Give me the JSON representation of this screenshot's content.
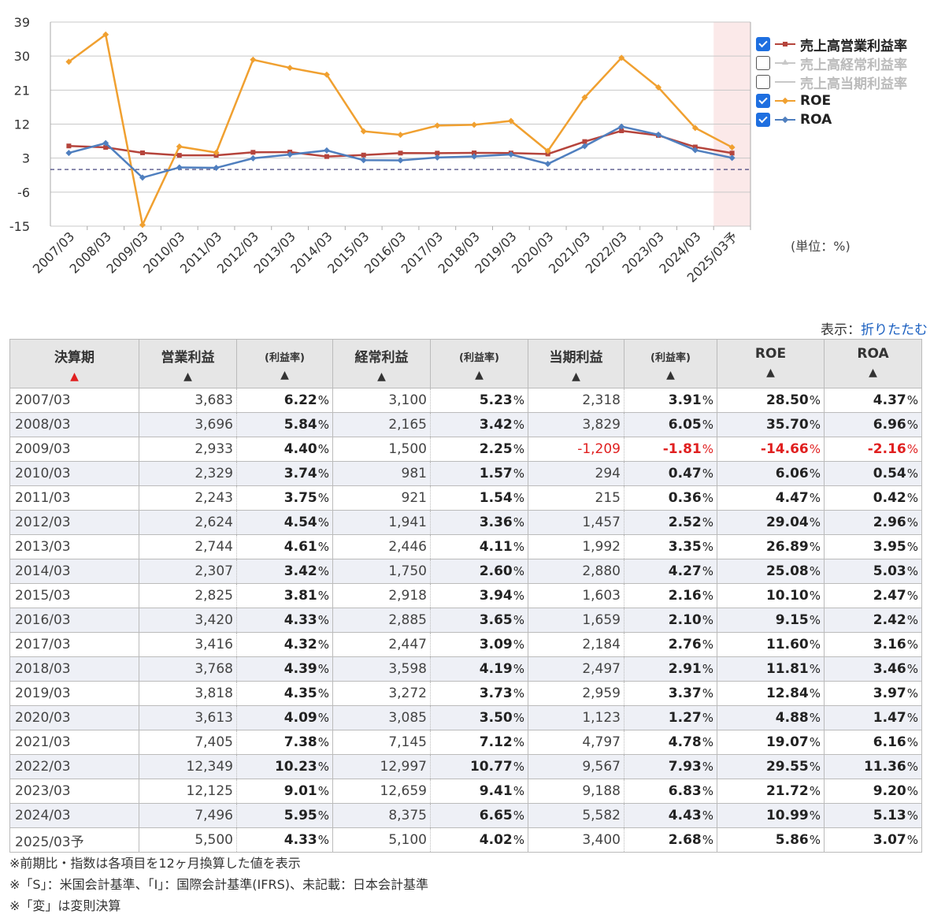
{
  "chart_data": {
    "type": "line",
    "categories": [
      "2007/03",
      "2008/03",
      "2009/03",
      "2010/03",
      "2011/03",
      "2012/03",
      "2013/03",
      "2014/03",
      "2015/03",
      "2016/03",
      "2017/03",
      "2018/03",
      "2019/03",
      "2020/03",
      "2021/03",
      "2022/03",
      "2023/03",
      "2024/03",
      "2025/03予"
    ],
    "yticks": [
      39,
      30,
      21,
      12,
      3,
      -6,
      -15
    ],
    "ylim": [
      -15,
      39
    ],
    "reference_line": 0,
    "forecast_shaded_category": "2025/03予",
    "series": [
      {
        "name": "売上高営業利益率",
        "color": "#b5443c",
        "marker": "square",
        "checked": true,
        "visible": true,
        "values": [
          6.22,
          5.84,
          4.4,
          3.74,
          3.75,
          4.54,
          4.61,
          3.42,
          3.81,
          4.33,
          4.32,
          4.39,
          4.35,
          4.09,
          7.38,
          10.23,
          9.01,
          5.95,
          4.33
        ]
      },
      {
        "name": "売上高経常利益率",
        "color": "#c8c8c8",
        "marker": "triangle",
        "checked": false,
        "visible": false,
        "values": [
          5.23,
          3.42,
          2.25,
          1.57,
          1.54,
          3.36,
          4.11,
          2.6,
          3.94,
          3.65,
          3.09,
          4.19,
          3.73,
          3.5,
          7.12,
          10.77,
          9.41,
          6.65,
          4.02
        ]
      },
      {
        "name": "売上高当期利益率",
        "color": "#c8c8c8",
        "marker": "none",
        "checked": false,
        "visible": false,
        "values": [
          3.91,
          6.05,
          -1.81,
          0.47,
          0.36,
          2.52,
          3.35,
          4.27,
          2.16,
          2.1,
          2.76,
          2.91,
          3.37,
          1.27,
          4.78,
          7.93,
          6.83,
          4.43,
          2.68
        ]
      },
      {
        "name": "ROE",
        "color": "#f0a030",
        "marker": "diamond",
        "checked": true,
        "visible": true,
        "values": [
          28.5,
          35.7,
          -14.66,
          6.06,
          4.47,
          29.04,
          26.89,
          25.08,
          10.1,
          9.15,
          11.6,
          11.81,
          12.84,
          4.88,
          19.07,
          29.55,
          21.72,
          10.99,
          5.86
        ]
      },
      {
        "name": "ROA",
        "color": "#4f7fbf",
        "marker": "diamond",
        "checked": true,
        "visible": true,
        "values": [
          4.37,
          6.96,
          -2.16,
          0.54,
          0.42,
          2.96,
          3.95,
          5.03,
          2.47,
          2.42,
          3.16,
          3.46,
          3.97,
          1.47,
          6.16,
          11.36,
          9.2,
          5.13,
          3.07
        ]
      }
    ]
  },
  "unit_note": "(単位：%)",
  "display_toggle": {
    "label": "表示：",
    "link": "折りたたむ"
  },
  "table": {
    "headers": {
      "period": "決算期",
      "op_income": "営業利益",
      "op_rate": "(利益率)",
      "ord_income": "経常利益",
      "ord_rate": "(利益率)",
      "net_income": "当期利益",
      "net_rate": "(利益率)",
      "roe": "ROE",
      "roa": "ROA",
      "sort_arrow": "▲"
    },
    "pct_unit": "%",
    "rows": [
      {
        "period": "2007/03",
        "op": "3,683",
        "op_r": "6.22",
        "ord": "3,100",
        "ord_r": "5.23",
        "net": "2,318",
        "net_r": "3.91",
        "roe": "28.50",
        "roa": "4.37"
      },
      {
        "period": "2008/03",
        "op": "3,696",
        "op_r": "5.84",
        "ord": "2,165",
        "ord_r": "3.42",
        "net": "3,829",
        "net_r": "6.05",
        "roe": "35.70",
        "roa": "6.96"
      },
      {
        "period": "2009/03",
        "op": "2,933",
        "op_r": "4.40",
        "ord": "1,500",
        "ord_r": "2.25",
        "net": "-1,209",
        "net_r": "-1.81",
        "roe": "-14.66",
        "roa": "-2.16"
      },
      {
        "period": "2010/03",
        "op": "2,329",
        "op_r": "3.74",
        "ord": "981",
        "ord_r": "1.57",
        "net": "294",
        "net_r": "0.47",
        "roe": "6.06",
        "roa": "0.54"
      },
      {
        "period": "2011/03",
        "op": "2,243",
        "op_r": "3.75",
        "ord": "921",
        "ord_r": "1.54",
        "net": "215",
        "net_r": "0.36",
        "roe": "4.47",
        "roa": "0.42"
      },
      {
        "period": "2012/03",
        "op": "2,624",
        "op_r": "4.54",
        "ord": "1,941",
        "ord_r": "3.36",
        "net": "1,457",
        "net_r": "2.52",
        "roe": "29.04",
        "roa": "2.96"
      },
      {
        "period": "2013/03",
        "op": "2,744",
        "op_r": "4.61",
        "ord": "2,446",
        "ord_r": "4.11",
        "net": "1,992",
        "net_r": "3.35",
        "roe": "26.89",
        "roa": "3.95"
      },
      {
        "period": "2014/03",
        "op": "2,307",
        "op_r": "3.42",
        "ord": "1,750",
        "ord_r": "2.60",
        "net": "2,880",
        "net_r": "4.27",
        "roe": "25.08",
        "roa": "5.03"
      },
      {
        "period": "2015/03",
        "op": "2,825",
        "op_r": "3.81",
        "ord": "2,918",
        "ord_r": "3.94",
        "net": "1,603",
        "net_r": "2.16",
        "roe": "10.10",
        "roa": "2.47"
      },
      {
        "period": "2016/03",
        "op": "3,420",
        "op_r": "4.33",
        "ord": "2,885",
        "ord_r": "3.65",
        "net": "1,659",
        "net_r": "2.10",
        "roe": "9.15",
        "roa": "2.42"
      },
      {
        "period": "2017/03",
        "op": "3,416",
        "op_r": "4.32",
        "ord": "2,447",
        "ord_r": "3.09",
        "net": "2,184",
        "net_r": "2.76",
        "roe": "11.60",
        "roa": "3.16"
      },
      {
        "period": "2018/03",
        "op": "3,768",
        "op_r": "4.39",
        "ord": "3,598",
        "ord_r": "4.19",
        "net": "2,497",
        "net_r": "2.91",
        "roe": "11.81",
        "roa": "3.46"
      },
      {
        "period": "2019/03",
        "op": "3,818",
        "op_r": "4.35",
        "ord": "3,272",
        "ord_r": "3.73",
        "net": "2,959",
        "net_r": "3.37",
        "roe": "12.84",
        "roa": "3.97"
      },
      {
        "period": "2020/03",
        "op": "3,613",
        "op_r": "4.09",
        "ord": "3,085",
        "ord_r": "3.50",
        "net": "1,123",
        "net_r": "1.27",
        "roe": "4.88",
        "roa": "1.47"
      },
      {
        "period": "2021/03",
        "op": "7,405",
        "op_r": "7.38",
        "ord": "7,145",
        "ord_r": "7.12",
        "net": "4,797",
        "net_r": "4.78",
        "roe": "19.07",
        "roa": "6.16"
      },
      {
        "period": "2022/03",
        "op": "12,349",
        "op_r": "10.23",
        "ord": "12,997",
        "ord_r": "10.77",
        "net": "9,567",
        "net_r": "7.93",
        "roe": "29.55",
        "roa": "11.36"
      },
      {
        "period": "2023/03",
        "op": "12,125",
        "op_r": "9.01",
        "ord": "12,659",
        "ord_r": "9.41",
        "net": "9,188",
        "net_r": "6.83",
        "roe": "21.72",
        "roa": "9.20"
      },
      {
        "period": "2024/03",
        "op": "7,496",
        "op_r": "5.95",
        "ord": "8,375",
        "ord_r": "6.65",
        "net": "5,582",
        "net_r": "4.43",
        "roe": "10.99",
        "roa": "5.13"
      },
      {
        "period": "2025/03予",
        "op": "5,500",
        "op_r": "4.33",
        "ord": "5,100",
        "ord_r": "4.02",
        "net": "3,400",
        "net_r": "2.68",
        "roe": "5.86",
        "roa": "3.07"
      }
    ]
  },
  "notes": [
    "※前期比・指数は各項目を12ヶ月換算した値を表示",
    "※「S」：米国会計基準、「I」：国際会計基準(IFRS)、未記載：日本会計基準",
    "※「変」は変則決算"
  ]
}
